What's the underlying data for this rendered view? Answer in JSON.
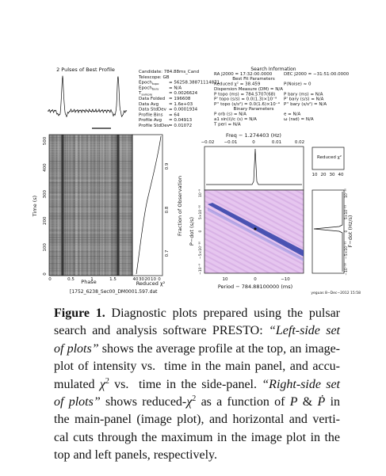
{
  "figure": {
    "left": {
      "profile_title": "2 Pulses of Best Profile",
      "time_label": "Time (s)",
      "time_ticks": [
        "0",
        "100",
        "200",
        "300",
        "400",
        "500"
      ],
      "phase_label": "Phase",
      "phase_ticks": [
        "0",
        "0.5",
        "1",
        "1.5"
      ],
      "chi_label": "Reduced χ²",
      "chi_ticks": [
        "40",
        "30",
        "20",
        "10",
        "0"
      ],
      "fraction_label": "Fraction of Observation",
      "fraction_ticks": [
        "0.7",
        "0.8",
        "0.9"
      ],
      "filename": "[1752_6238_Sec00_DM0001.597.dat"
    },
    "info": [
      {
        "name": "Candidate: 784.88ms_Cand"
      },
      {
        "name": "Telescope: GB"
      },
      {
        "name": "Epoch",
        "sub": "topo",
        "value": "= 56258.38871114871"
      },
      {
        "name": "Epoch",
        "sub": "bary",
        "value": "= N/A"
      },
      {
        "name": "T",
        "sub": "sample",
        "value": "= 0.0026624"
      },
      {
        "name": "Data Folded",
        "value": "= 196608"
      },
      {
        "name": "Data Avg",
        "value": "= 1.6e+03"
      },
      {
        "name": "Data StdDev",
        "value": "= 0.0001934"
      },
      {
        "name": "Profile Bins",
        "value": "= 64"
      },
      {
        "name": "Profile Avg",
        "value": "= 0.04913"
      },
      {
        "name": "Profile StdDev",
        "value": "= 0.01072"
      }
    ],
    "search": {
      "title": "Search Information",
      "ra": "RA J2000 = 17:32:00.0000",
      "dec": "DEC J2000 = −31:51:00.0000",
      "best_fit": "Best Fit Parameters",
      "binary": "Binary Parameters",
      "rows": [
        [
          "Reduced χ² = 38.459",
          "P(Noise) ≈ 0"
        ],
        [
          "Dispersion Measure (DM) = N/A"
        ],
        [
          "P topo (ms) = 784.5707(68)",
          "P bary (ms) = N/A"
        ],
        [
          "P' topo (s/s) = 0.0(1.3)×10⁻⁹",
          "P' bary (s/s) = N/A"
        ],
        [
          "P'' topo (s/s²) = 0.0(1.6)×10⁻⁹",
          "P'' bary (s/s²) = N/A"
        ]
      ],
      "binary_rows": [
        [
          "P orb (s) = N/A",
          "e = N/A"
        ],
        [
          "a1 sin(i)/c (s) = N/A",
          "ω (rad) = N/A"
        ],
        [
          "T peri = N/A"
        ]
      ]
    },
    "right": {
      "freq_label": "Freq − 1.274403 (Hz)",
      "freq_ticks": [
        "−0.02",
        "−0.01",
        "0",
        "0.01",
        "0.02"
      ],
      "small_chi_label": "Reduced χ²",
      "small_chi_ticks": [
        "10",
        "20",
        "30",
        "40"
      ],
      "period_label": "Period − 784.88100000 (ms)",
      "period_ticks": [
        "10",
        "0",
        "−10"
      ],
      "pdot_label": "P−dot (s/s)",
      "pdot_ticks": [
        "−10⁻⁹",
        "−5×10⁻¹⁰",
        "0",
        "5×10⁻¹⁰",
        "10⁻⁹"
      ],
      "fdot_label": "F−dot (Hz/s)",
      "fdot_ticks": [
        "−10⁻¹⁰",
        "−5×10⁻¹¹",
        "0",
        "5×10⁻¹¹",
        "10⁻¹⁰"
      ],
      "footer": "yeguas   8−Dec−2012 15:58"
    }
  },
  "caption": {
    "lines": [
      [
        {
          "text": "Figure 1.",
          "style": "bold"
        },
        {
          "text": " Diagnostic plots prepared using the pulsar"
        }
      ],
      [
        {
          "text": "search and analysis software PRESTO: "
        },
        {
          "text": "“Left-side set",
          "style": "italic"
        }
      ],
      [
        {
          "text": "of plots”",
          "style": "italic"
        },
        {
          "text": " shows the average profile at the top, an image-"
        }
      ],
      [
        {
          "text": "plot of intensity vs.  time in the main panel, and accu-"
        }
      ],
      [
        {
          "text": "mulated "
        },
        {
          "text": "χ",
          "style": "italic"
        },
        {
          "text": "2",
          "style": "sup"
        },
        {
          "text": " vs.  time in the side-panel. "
        },
        {
          "text": "“Right-side set",
          "style": "italic"
        }
      ],
      [
        {
          "text": "of plots”",
          "style": "italic"
        },
        {
          "text": " shows reduced-"
        },
        {
          "text": "χ",
          "style": "italic"
        },
        {
          "text": "2",
          "style": "sup"
        },
        {
          "text": " as a function of "
        },
        {
          "text": "P",
          "style": "italic"
        },
        {
          "text": " & "
        },
        {
          "text": "Ṗ",
          "style": "italic"
        },
        {
          "text": " in"
        }
      ],
      [
        {
          "text": "the main-panel (image plot), and horizontal and verti-"
        }
      ],
      [
        {
          "text": "cal cuts through the maximum in the image plot in the"
        }
      ],
      [
        {
          "text": "top and left panels, respectively."
        }
      ]
    ]
  }
}
